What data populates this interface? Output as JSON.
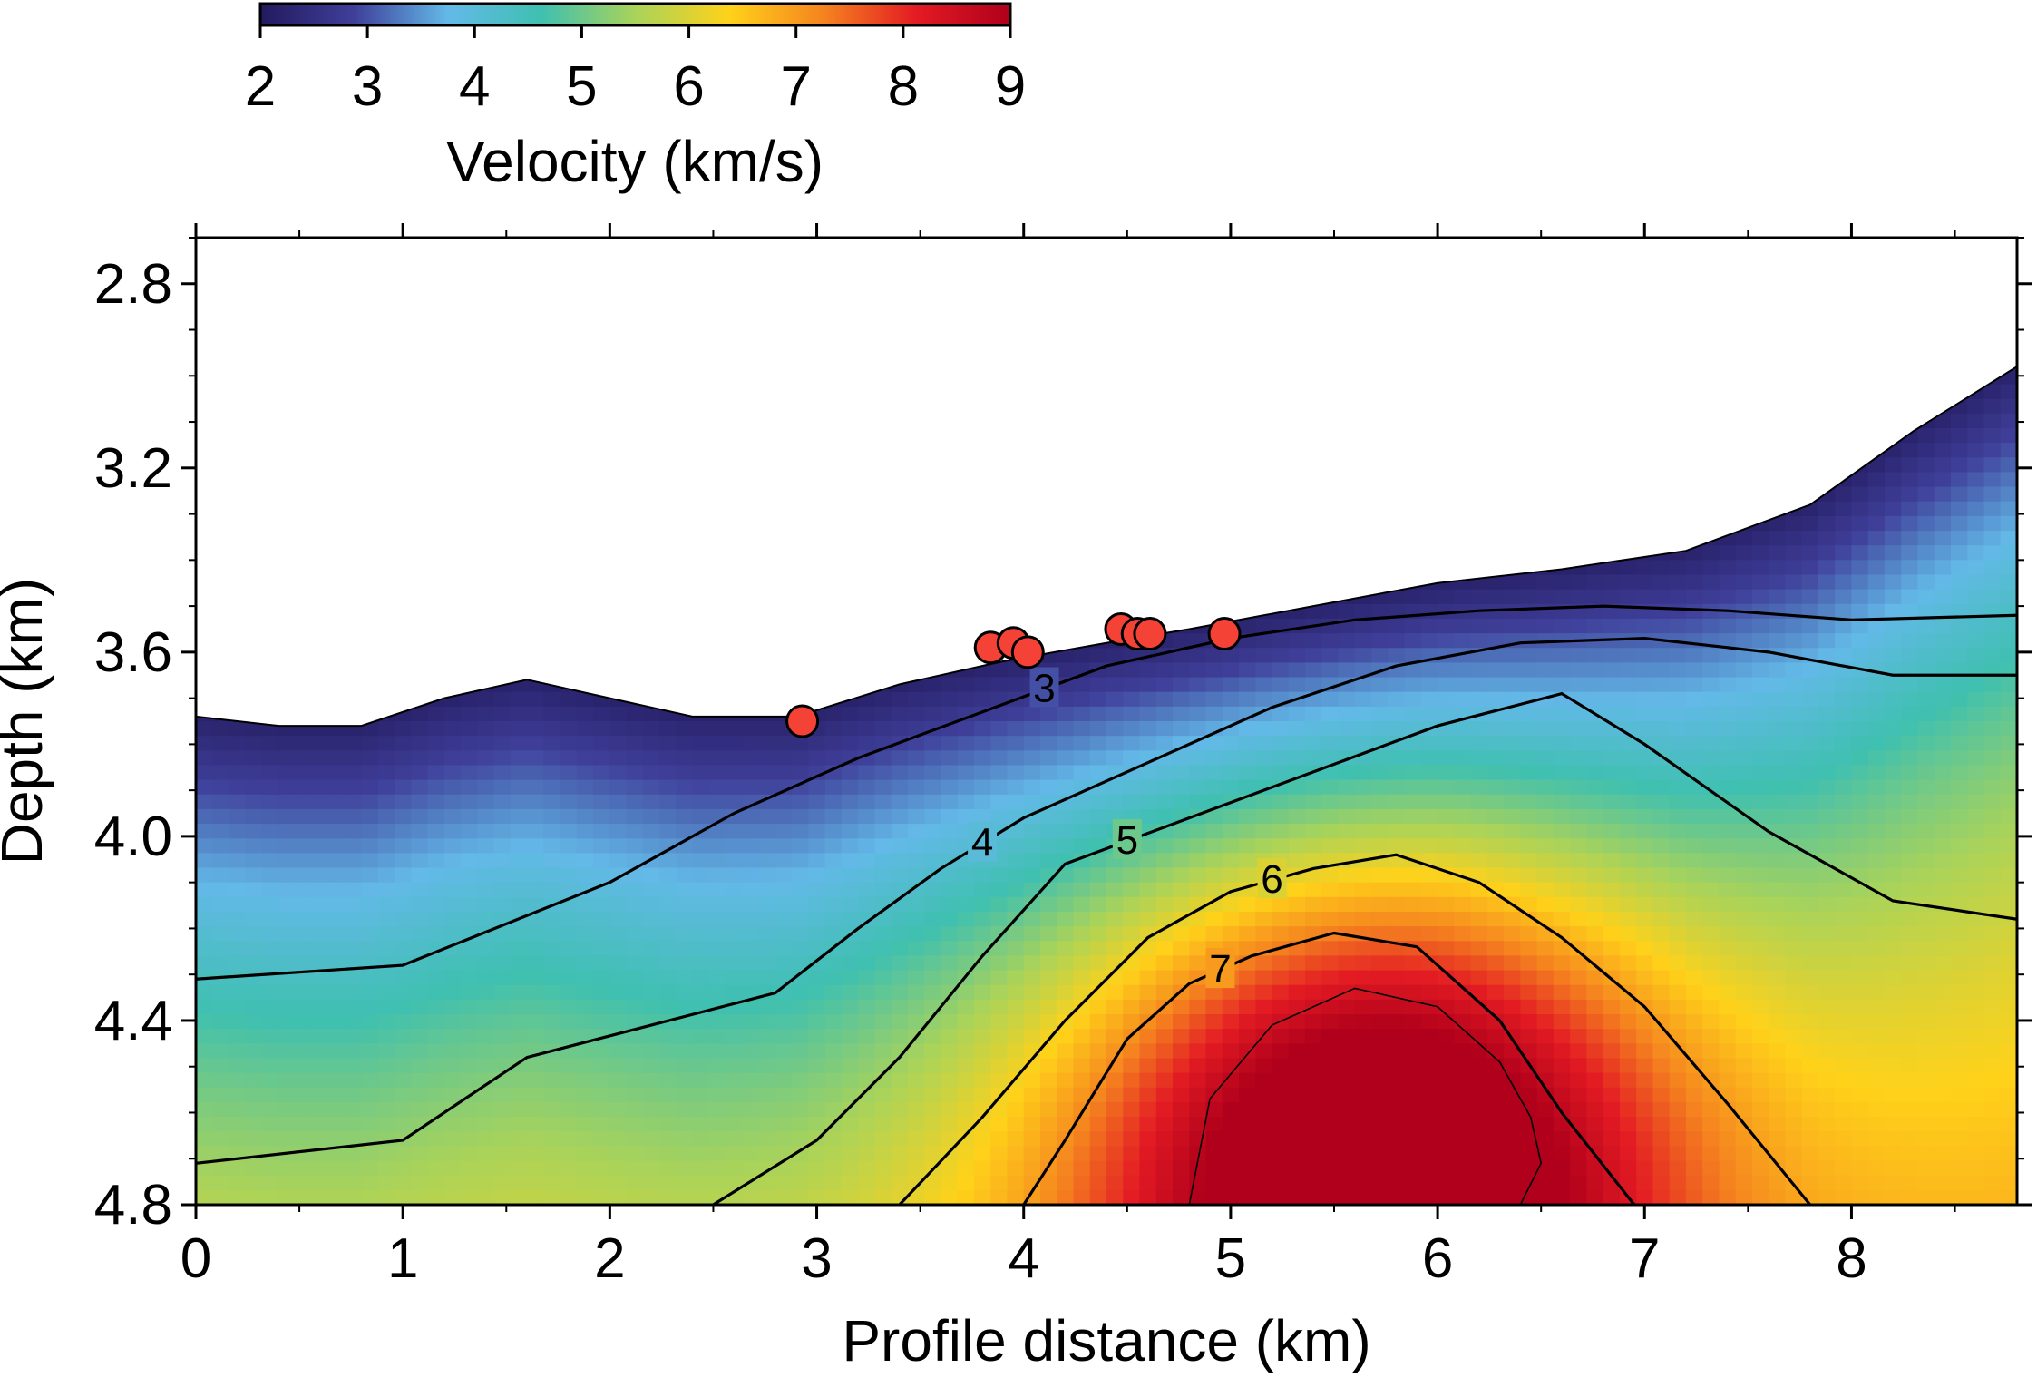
{
  "colorbar": {
    "label": "Velocity (km/s)",
    "min": 2,
    "max": 9,
    "ticks": [
      "2",
      "3",
      "4",
      "5",
      "6",
      "7",
      "8",
      "9"
    ],
    "colors": [
      "#231a5e",
      "#3f3f9a",
      "#63b9e8",
      "#3fc0b0",
      "#a9d35a",
      "#ffd21a",
      "#f5841f",
      "#e31b23",
      "#b0001b"
    ]
  },
  "chart_data": {
    "type": "heatmap",
    "title": "",
    "xlabel": "Profile distance (km)",
    "ylabel": "Depth (km)",
    "xlim": [
      0,
      8.8
    ],
    "ylim": [
      4.8,
      2.7
    ],
    "xticks": [
      "0",
      "1",
      "2",
      "3",
      "4",
      "5",
      "6",
      "7",
      "8"
    ],
    "yticks": [
      "2.8",
      "3.2",
      "3.6",
      "4.0",
      "4.4",
      "4.8"
    ],
    "grid": false,
    "surface": {
      "x": [
        0,
        0.4,
        0.8,
        1.2,
        1.6,
        2.0,
        2.4,
        2.9,
        3.4,
        3.9,
        4.4,
        4.8,
        5.4,
        6.0,
        6.6,
        7.2,
        7.8,
        8.3,
        8.8
      ],
      "depth": [
        3.74,
        3.76,
        3.76,
        3.7,
        3.66,
        3.7,
        3.74,
        3.74,
        3.67,
        3.62,
        3.58,
        3.55,
        3.5,
        3.45,
        3.42,
        3.38,
        3.28,
        3.12,
        2.98
      ]
    },
    "contours": [
      {
        "label": "3",
        "labeled": true,
        "x": [
          0,
          1,
          2,
          2.6,
          3.2,
          3.8,
          4.4,
          5.0,
          5.6,
          6.2,
          6.8,
          7.4,
          8.0,
          8.8
        ],
        "depth": [
          4.31,
          4.28,
          4.1,
          3.95,
          3.83,
          3.73,
          3.63,
          3.57,
          3.53,
          3.51,
          3.5,
          3.51,
          3.53,
          3.52
        ]
      },
      {
        "label": "4",
        "labeled": true,
        "x": [
          0,
          1,
          1.6,
          2.2,
          2.8,
          3.2,
          3.6,
          4.0,
          4.6,
          5.2,
          5.8,
          6.4,
          7.0,
          7.6,
          8.2,
          8.8
        ],
        "depth": [
          4.71,
          4.66,
          4.48,
          4.41,
          4.34,
          4.2,
          4.07,
          3.96,
          3.84,
          3.72,
          3.63,
          3.58,
          3.57,
          3.6,
          3.65,
          3.65
        ]
      },
      {
        "label": "5",
        "labeled": true,
        "x": [
          2.5,
          3.0,
          3.4,
          3.8,
          4.2,
          4.8,
          5.4,
          6.0,
          6.6,
          7.0,
          7.6,
          8.2,
          8.8
        ],
        "depth": [
          4.8,
          4.66,
          4.48,
          4.26,
          4.06,
          3.96,
          3.86,
          3.76,
          3.69,
          3.8,
          3.99,
          4.14,
          4.18
        ]
      },
      {
        "label": "6",
        "labeled": true,
        "x": [
          3.4,
          3.8,
          4.2,
          4.6,
          5.0,
          5.4,
          5.8,
          6.2,
          6.6,
          7.0,
          7.4,
          7.8
        ],
        "depth": [
          4.8,
          4.61,
          4.4,
          4.22,
          4.12,
          4.07,
          4.04,
          4.1,
          4.22,
          4.37,
          4.58,
          4.8
        ]
      },
      {
        "label": "7",
        "labeled": true,
        "x": [
          4.0,
          4.2,
          4.5,
          4.8,
          5.1,
          5.5,
          5.9,
          6.3,
          6.6,
          6.95
        ],
        "depth": [
          4.8,
          4.66,
          4.44,
          4.32,
          4.26,
          4.21,
          4.24,
          4.4,
          4.6,
          4.8
        ]
      },
      {
        "label": "8",
        "labeled": false,
        "x": [
          4.8,
          4.9,
          5.2,
          5.6,
          6.0,
          6.3,
          6.45,
          6.5,
          6.4
        ],
        "depth": [
          4.8,
          4.57,
          4.41,
          4.33,
          4.37,
          4.49,
          4.61,
          4.71,
          4.8
        ]
      }
    ],
    "receivers": {
      "x": [
        2.93,
        3.84,
        3.95,
        4.02,
        4.47,
        4.55,
        4.61,
        4.97
      ],
      "depth": [
        3.75,
        3.59,
        3.58,
        3.6,
        3.55,
        3.56,
        3.56,
        3.56
      ]
    }
  }
}
